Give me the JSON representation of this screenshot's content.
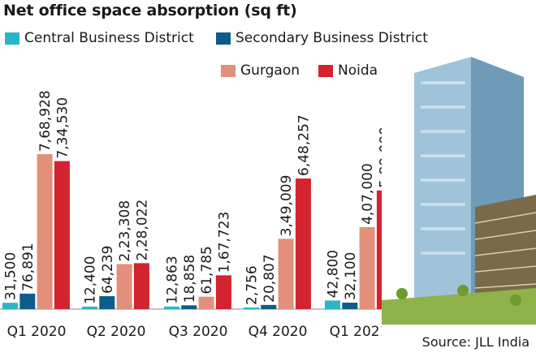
{
  "chart_data": {
    "type": "bar",
    "title": "Net office space absorption (sq ft)",
    "categories": [
      "Q1 2020",
      "Q2 2020",
      "Q3 2020",
      "Q4 2020",
      "Q1 2021"
    ],
    "series": [
      {
        "name": "Central Business District",
        "color": "#2bb5c8",
        "values": [
          31500,
          12400,
          12863,
          2756,
          42800
        ],
        "labels": [
          "31,500",
          "12,400",
          "12,863",
          "2,756",
          "42,800"
        ]
      },
      {
        "name": "Secondary Business District",
        "color": "#0d5d8a",
        "values": [
          76891,
          64239,
          18858,
          20807,
          32100
        ],
        "labels": [
          "76,891",
          "64,239",
          "18,858",
          "20,807",
          "32,100"
        ]
      },
      {
        "name": "Gurgaon",
        "color": "#e2907b",
        "values": [
          768928,
          223308,
          61785,
          349009,
          407000
        ],
        "labels": [
          "7,68,928",
          "2,23,308",
          "61,785",
          "3,49,009",
          "4,07,000"
        ]
      },
      {
        "name": "Noida",
        "color": "#d2232e",
        "values": [
          734530,
          228022,
          167723,
          648257,
          589000
        ],
        "labels": [
          "7,34,530",
          "2,28,022",
          "1,67,723",
          "6,48,257",
          "5,89,000"
        ]
      }
    ],
    "grid": false,
    "legend_placement": "top"
  },
  "source": "Source: JLL India"
}
